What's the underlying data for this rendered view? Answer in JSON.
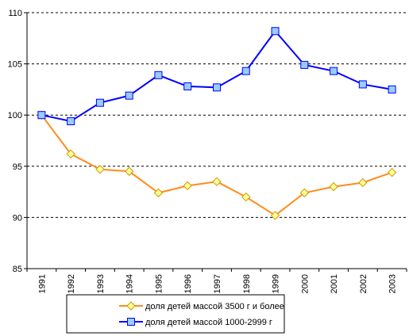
{
  "chart_data": {
    "type": "line",
    "title": "",
    "xlabel": "",
    "ylabel": "",
    "categories": [
      "1991",
      "1992",
      "1993",
      "1994",
      "1995",
      "1996",
      "1997",
      "1998",
      "1999",
      "2000",
      "2001",
      "2002",
      "2003"
    ],
    "ylim": [
      85,
      110
    ],
    "yticks": [
      85,
      90,
      95,
      100,
      105,
      110
    ],
    "grid": "horizontal dashed",
    "legend_position": "bottom",
    "series": [
      {
        "name": "доля детей  массой 3500 г и более",
        "color": "#ff8c1a",
        "marker": "diamond",
        "marker_color": "#ffff99",
        "values": [
          100,
          96.2,
          94.7,
          94.5,
          92.4,
          93.1,
          93.5,
          92.0,
          90.2,
          92.4,
          93.0,
          93.4,
          94.4
        ]
      },
      {
        "name": "доля детей массой 1000-2999 г",
        "color": "#0000ff",
        "marker": "square",
        "marker_color": "#99ccff",
        "values": [
          100,
          99.4,
          101.2,
          101.9,
          103.9,
          102.8,
          102.7,
          104.3,
          108.2,
          104.9,
          104.3,
          103.0,
          102.5
        ]
      }
    ]
  }
}
